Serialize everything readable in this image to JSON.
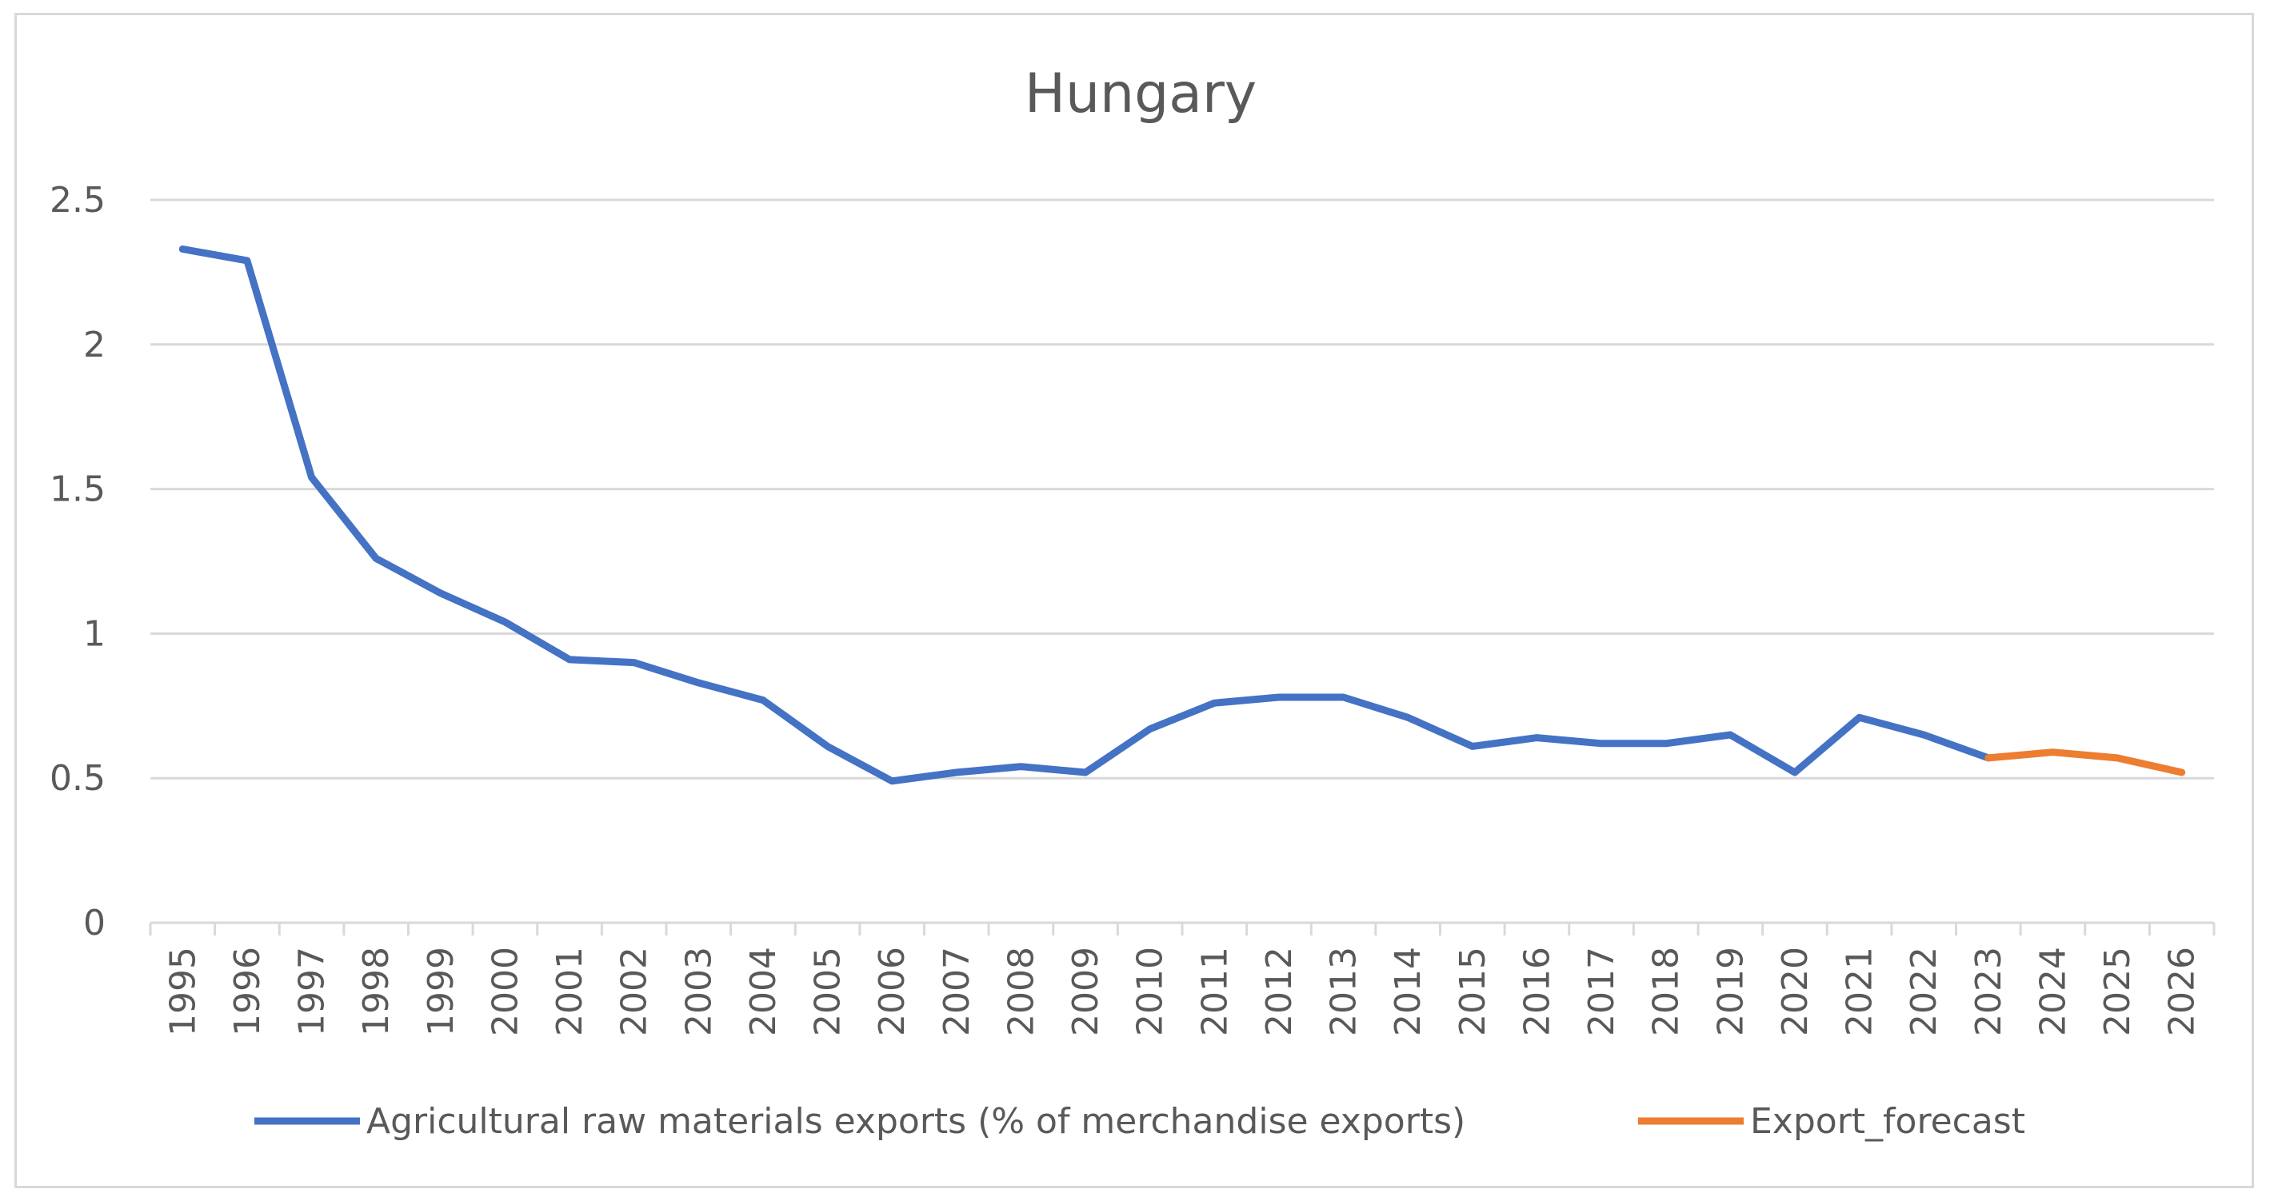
{
  "chart_data": {
    "type": "line",
    "title": "Hungary",
    "xlabel": "",
    "ylabel": "",
    "ylim": [
      0,
      2.5
    ],
    "yticks": [
      0,
      0.5,
      1,
      1.5,
      2,
      2.5
    ],
    "ytick_labels": [
      "0",
      "0.5",
      "1",
      "1.5",
      "2",
      "2.5"
    ],
    "categories": [
      "1995",
      "1996",
      "1997",
      "1998",
      "1999",
      "2000",
      "2001",
      "2002",
      "2003",
      "2004",
      "2005",
      "2006",
      "2007",
      "2008",
      "2009",
      "2010",
      "2011",
      "2012",
      "2013",
      "2014",
      "2015",
      "2016",
      "2017",
      "2018",
      "2019",
      "2020",
      "2021",
      "2022",
      "2023",
      "2024",
      "2025",
      "2026"
    ],
    "grid": true,
    "legend_position": "bottom",
    "series": [
      {
        "name": "Agricultural raw materials exports (% of merchandise exports)",
        "color": "#4472c4",
        "values": [
          2.33,
          2.29,
          1.54,
          1.26,
          1.14,
          1.04,
          0.91,
          0.9,
          0.83,
          0.77,
          0.61,
          0.49,
          0.52,
          0.54,
          0.52,
          0.67,
          0.76,
          0.78,
          0.78,
          0.71,
          0.61,
          0.64,
          0.62,
          0.62,
          0.65,
          0.52,
          0.71,
          0.65,
          0.57,
          null,
          null,
          null
        ]
      },
      {
        "name": "Export_forecast",
        "color": "#ed7d31",
        "values": [
          null,
          null,
          null,
          null,
          null,
          null,
          null,
          null,
          null,
          null,
          null,
          null,
          null,
          null,
          null,
          null,
          null,
          null,
          null,
          null,
          null,
          null,
          null,
          null,
          null,
          null,
          null,
          null,
          0.57,
          0.59,
          0.57,
          0.52
        ]
      }
    ]
  }
}
